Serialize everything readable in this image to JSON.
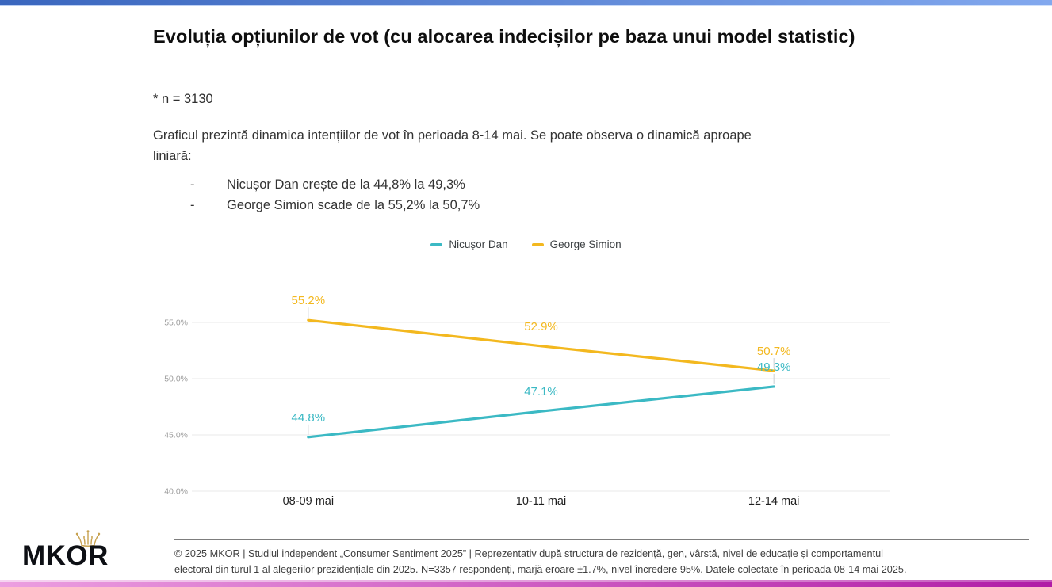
{
  "accent_colors": {
    "top_bar_left": "#3A66BE",
    "top_bar_right": "#82A8EE",
    "bottom_bar_left": "#EC9FE0",
    "bottom_bar_right": "#B01CA6"
  },
  "slide": {
    "title": "Evoluția opțiunilor de vot (cu alocarea indecișilor pe baza unui model statistic)",
    "sample_note": "* n = 3130",
    "description": "Graficul prezintă dinamica intențiilor de vot în perioada 8-14 mai. Se poate observa o dinamică aproape liniară:",
    "bullet_marker": "-",
    "bullets": [
      "Nicușor Dan crește de la 44,8% la 49,3%",
      "George Simion scade de la 55,2% la 50,7%"
    ]
  },
  "chart_data": {
    "type": "line",
    "title": "",
    "categories": [
      "08-09 mai",
      "10-11 mai",
      "12-14 mai"
    ],
    "series": [
      {
        "name": "Nicușor Dan",
        "color": "#3BB9C4",
        "values": [
          44.8,
          47.1,
          49.3
        ],
        "point_labels": [
          "44.8%",
          "47.1%",
          "49.3%"
        ]
      },
      {
        "name": "George Simion",
        "color": "#F3B81F",
        "values": [
          55.2,
          52.9,
          50.7
        ],
        "point_labels": [
          "55.2%",
          "52.9%",
          "50.7%"
        ]
      }
    ],
    "y_axis": {
      "range": [
        40,
        55
      ],
      "ticks": [
        40,
        45,
        50,
        55
      ],
      "tick_labels": [
        "40.0%",
        "45.0%",
        "50.0%",
        "55.0%"
      ]
    },
    "grid": true,
    "legend_position": "top-center",
    "grid_color": "#e8e8e8",
    "stem_color": "#c9cdd1",
    "x_label_color": "#1f1f1f",
    "y_label_color": "#9e9e9e"
  },
  "footer": {
    "logo_text": "MKOR",
    "lines": [
      "© 2025 MKOR | Studiul independent „Consumer Sentiment 2025” | Reprezentativ după structura de rezidență, gen, vârstă, nivel de educație și comportamentul",
      "electoral din turul 1 al alegerilor prezidențiale din 2025. N=3357 respondenți, marjă eroare ±1.7%, nivel încredere 95%. Datele colectate în perioada 08-14 mai 2025."
    ]
  }
}
